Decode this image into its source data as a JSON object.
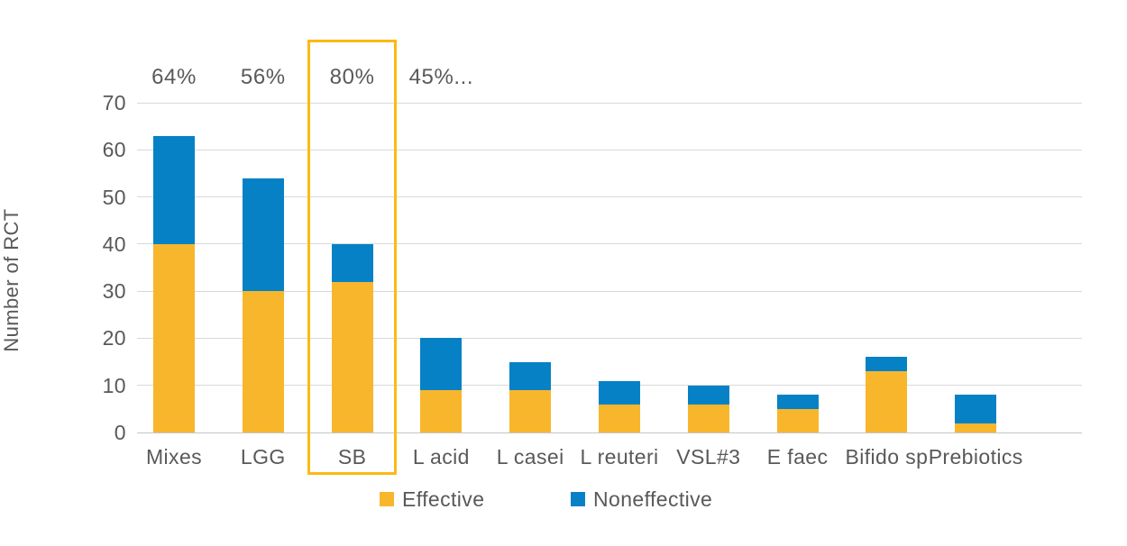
{
  "chart_data": {
    "type": "bar",
    "stacked": true,
    "title": "",
    "xlabel": "",
    "ylabel": "Number of RCT",
    "categories": [
      "Mixes",
      "LGG",
      "SB",
      "L acid",
      "L casei",
      "L reuteri",
      "VSL#3",
      "E faec",
      "Bifido sp",
      "Prebiotics"
    ],
    "series": [
      {
        "name": "Effective",
        "color": "#F8B62D",
        "values": [
          40,
          30,
          32,
          9,
          9,
          6,
          6,
          5,
          13,
          2
        ]
      },
      {
        "name": "Noneffective",
        "color": "#0681C6",
        "values": [
          23,
          24,
          8,
          11,
          6,
          5,
          4,
          3,
          3,
          6
        ]
      }
    ],
    "percent_labels": [
      "64%",
      "56%",
      "80%",
      "45%...",
      "",
      "",
      "",
      "",
      "",
      ""
    ],
    "ylim": [
      0,
      70
    ],
    "yticks": [
      0,
      10,
      20,
      30,
      40,
      50,
      60,
      70
    ],
    "grid": "horizontal",
    "legend_position": "bottom-center",
    "highlight": {
      "category": "SB",
      "border_color": "#FDB913"
    },
    "text_color": "#595959",
    "gridline_color": "#D9D9D9",
    "background_color": "#FFFFFF"
  }
}
